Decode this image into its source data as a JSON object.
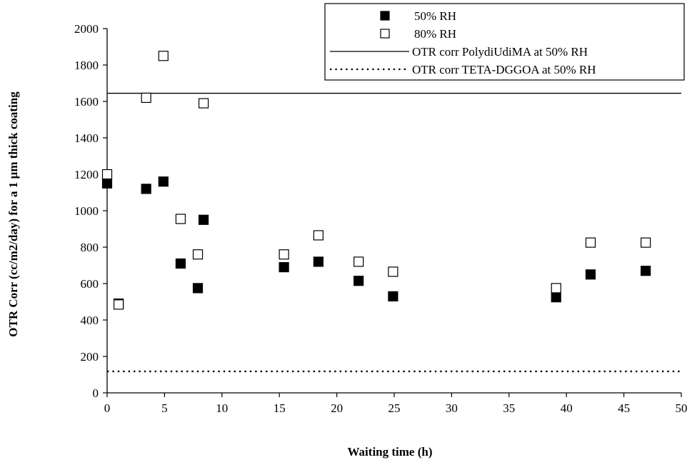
{
  "chart_data": {
    "type": "scatter",
    "xlabel": "Waiting time (h)",
    "ylabel": "OTR Corr (cc/m2/day) for a 1 µm thick coating",
    "xlim": [
      0,
      50
    ],
    "ylim": [
      0,
      2000
    ],
    "x_ticks": [
      "0",
      "5",
      "10",
      "15",
      "20",
      "25",
      "30",
      "35",
      "40",
      "45",
      "50"
    ],
    "y_ticks": [
      "0",
      "200",
      "400",
      "600",
      "800",
      "1000",
      "1200",
      "1400",
      "1600",
      "1800",
      "2000"
    ],
    "grid": false,
    "legend_position": "top-right",
    "series": [
      {
        "name": "50% RH",
        "marker": "filled-square",
        "color": "#000000",
        "points": [
          {
            "x": 0,
            "y": 1150
          },
          {
            "x": 1,
            "y": 490
          },
          {
            "x": 3.4,
            "y": 1120
          },
          {
            "x": 4.9,
            "y": 1160
          },
          {
            "x": 6.4,
            "y": 710
          },
          {
            "x": 7.9,
            "y": 575
          },
          {
            "x": 8.4,
            "y": 950
          },
          {
            "x": 15.4,
            "y": 690
          },
          {
            "x": 18.4,
            "y": 720
          },
          {
            "x": 21.9,
            "y": 615
          },
          {
            "x": 24.9,
            "y": 530
          },
          {
            "x": 39.1,
            "y": 525
          },
          {
            "x": 42.1,
            "y": 650
          },
          {
            "x": 46.9,
            "y": 670
          }
        ]
      },
      {
        "name": "80% RH",
        "marker": "open-square",
        "color": "#000000",
        "points": [
          {
            "x": 0,
            "y": 1200
          },
          {
            "x": 1,
            "y": 485
          },
          {
            "x": 3.4,
            "y": 1620
          },
          {
            "x": 4.9,
            "y": 1850
          },
          {
            "x": 6.4,
            "y": 955
          },
          {
            "x": 7.9,
            "y": 760
          },
          {
            "x": 8.4,
            "y": 1590
          },
          {
            "x": 15.4,
            "y": 760
          },
          {
            "x": 18.4,
            "y": 865
          },
          {
            "x": 21.9,
            "y": 720
          },
          {
            "x": 24.9,
            "y": 665
          },
          {
            "x": 39.1,
            "y": 575
          },
          {
            "x": 42.1,
            "y": 825
          },
          {
            "x": 46.9,
            "y": 825
          }
        ]
      }
    ],
    "reference_lines": [
      {
        "name": "OTR corr PolydiUdiMA at 50% RH",
        "y": 1645,
        "style": "solid"
      },
      {
        "name": "OTR corr TETA-DGGOA at 50% RH",
        "y": 118,
        "style": "dotted"
      }
    ]
  }
}
